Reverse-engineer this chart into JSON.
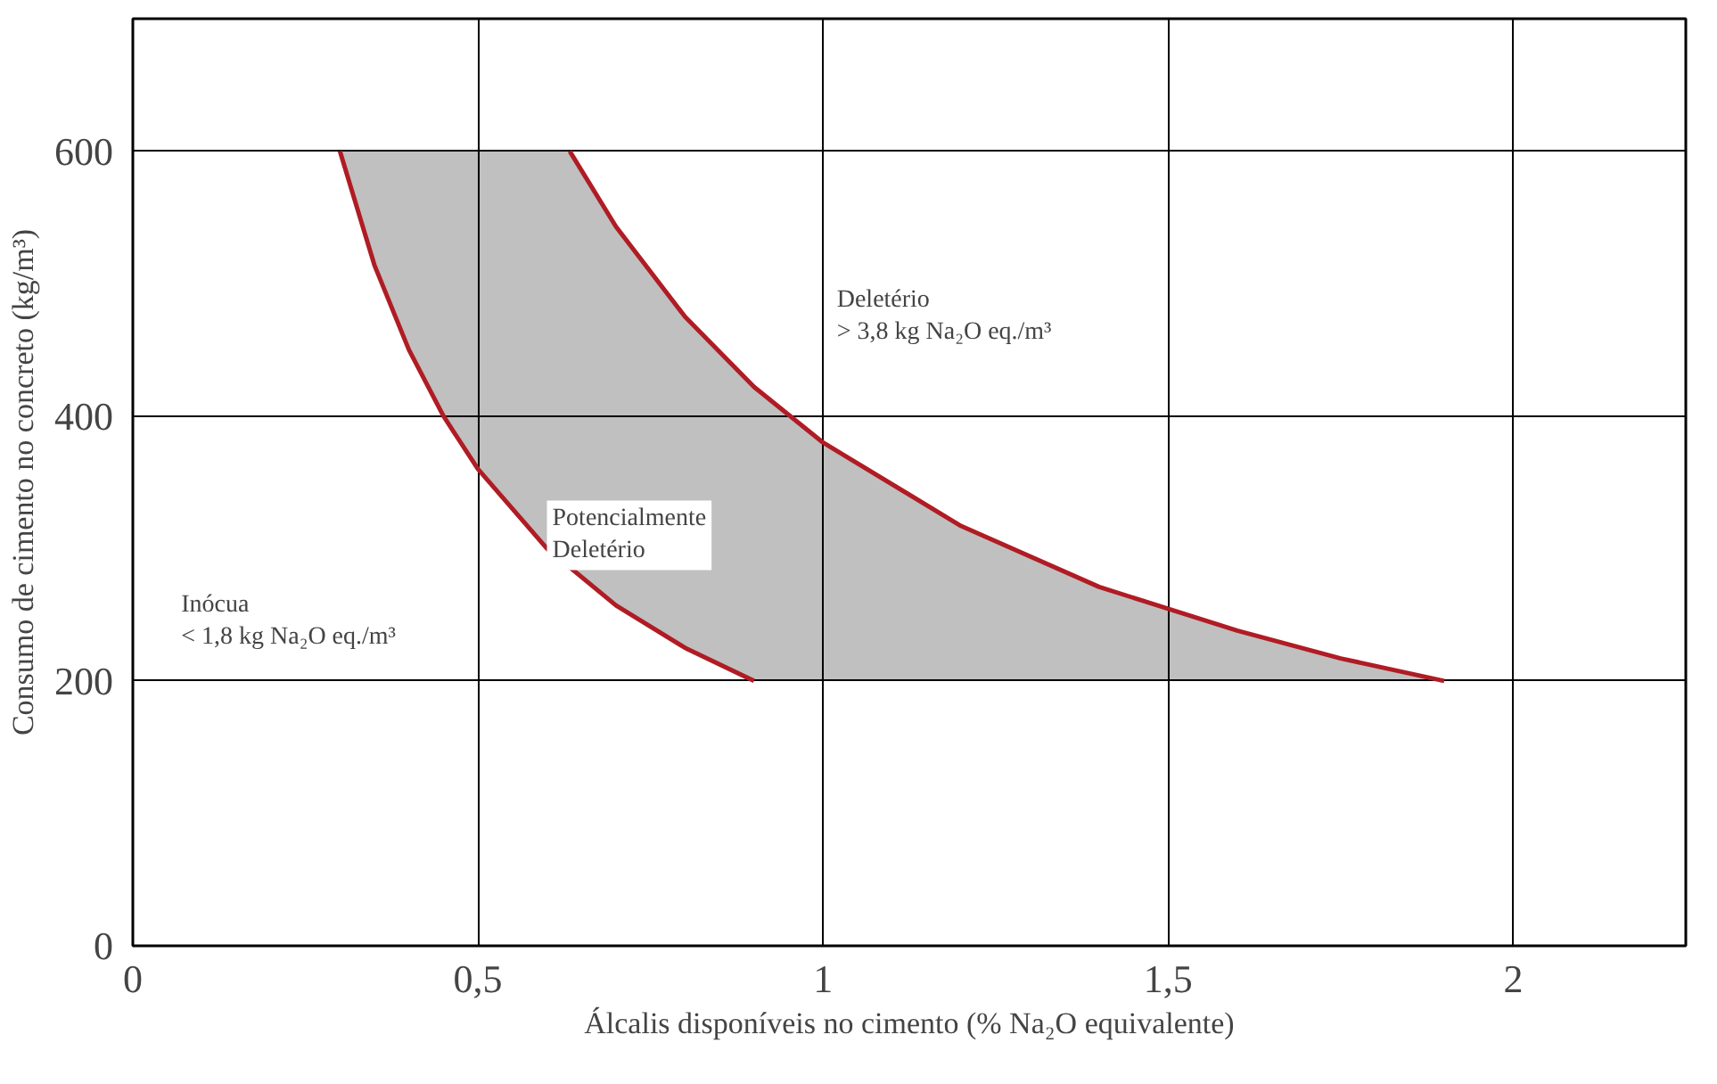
{
  "chart_data": {
    "type": "line",
    "xlabel": "Álcalis disponíveis no cimento (% Na₂O equivalente)",
    "ylabel": "Consumo de cimento no concreto (kg/m³)",
    "xlim": [
      0,
      2.25
    ],
    "ylim": [
      0,
      700
    ],
    "xticks": [
      0,
      {
        "value": 0.5,
        "label": "0,5"
      },
      1,
      {
        "value": 1.5,
        "label": "1,5"
      },
      2
    ],
    "yticks": [
      0,
      200,
      400,
      600
    ],
    "grid": true,
    "marker": "none",
    "line_style": "solid",
    "series": [
      {
        "color": "#b01c24",
        "x": [
          0.3,
          0.35,
          0.4,
          0.45,
          0.5,
          0.6,
          0.7,
          0.8,
          0.9
        ],
        "values": [
          600,
          514,
          450,
          400,
          360,
          300,
          257,
          225,
          200
        ]
      },
      {
        "color": "#b01c24",
        "x": [
          0.3,
          0.35,
          0.4,
          0.45,
          0.5,
          0.6,
          0.633,
          0.7,
          0.8,
          0.9,
          1.0,
          1.2,
          1.4,
          1.6,
          1.75,
          1.9
        ],
        "values": [
          null,
          null,
          null,
          null,
          null,
          null,
          600,
          543,
          475,
          422,
          380,
          317,
          271,
          238,
          217,
          200
        ],
        "lower": [
          600,
          514,
          450,
          400,
          360,
          300,
          284,
          257,
          225,
          200,
          200,
          200,
          200,
          200,
          200,
          200
        ],
        "upper": [
          600,
          600,
          600,
          600,
          600,
          600,
          600,
          543,
          475,
          422,
          380,
          317,
          271,
          238,
          217,
          200
        ]
      }
    ],
    "annotations": [
      "Inócua\n< 1,8 kg Na₂O eq./m³",
      "Potencialmente\nDeletério",
      "Deletério\n> 3,8 kg Na₂O eq./m³"
    ]
  }
}
